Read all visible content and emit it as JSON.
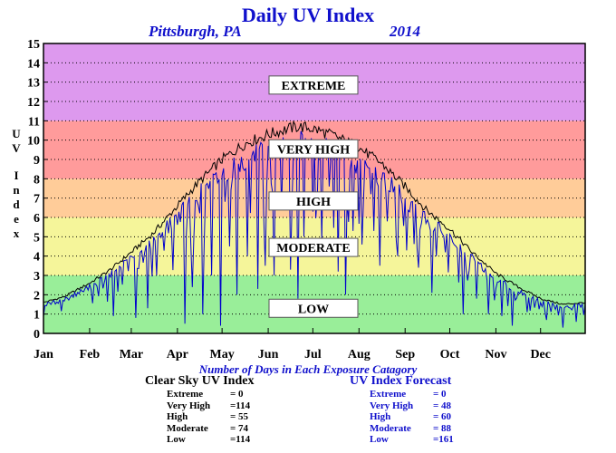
{
  "header": {
    "title": "Daily UV Index",
    "location": "Pittsburgh, PA",
    "year": "2014"
  },
  "colors": {
    "low": "#99ee99",
    "moderate": "#f5f59a",
    "high": "#ffcc99",
    "very_high": "#ff9b9b",
    "extreme": "#dd99ee",
    "clear_sky_line": "#000000",
    "forecast_line": "#0000cc",
    "title_blue": "#1010cc"
  },
  "chart_data": {
    "type": "line",
    "title": "Daily UV Index",
    "ylabel": "UV Index",
    "ylabel_letters": [
      "U",
      "V",
      "",
      "I",
      "n",
      "d",
      "e",
      "x"
    ],
    "ylim": [
      0,
      15
    ],
    "y_ticks": [
      0,
      1,
      2,
      3,
      4,
      5,
      6,
      7,
      8,
      9,
      10,
      11,
      12,
      13,
      14,
      15
    ],
    "x_range": [
      1,
      365
    ],
    "month_labels": [
      "Jan",
      "Feb",
      "Mar",
      "Apr",
      "May",
      "Jun",
      "Jul",
      "Aug",
      "Sep",
      "Oct",
      "Nov",
      "Dec"
    ],
    "month_days": [
      1,
      32,
      60,
      91,
      121,
      152,
      182,
      213,
      244,
      274,
      305,
      335
    ],
    "grid": true,
    "bands": [
      {
        "label": "LOW",
        "from": 0,
        "to": 3,
        "label_center": 1.3,
        "color_key": "low"
      },
      {
        "label": "MODERATE",
        "from": 3,
        "to": 6,
        "label_center": 4.45,
        "color_key": "moderate"
      },
      {
        "label": "HIGH",
        "from": 6,
        "to": 8,
        "label_center": 6.85,
        "color_key": "high"
      },
      {
        "label": "VERY HIGH",
        "from": 8,
        "to": 11,
        "label_center": 9.55,
        "color_key": "very_high"
      },
      {
        "label": "EXTREME",
        "from": 11,
        "to": 15,
        "label_center": 12.85,
        "color_key": "extreme"
      }
    ],
    "series": [
      {
        "key": "clear_sky",
        "color_key": "clear_sky_line",
        "anchors_day": [
          1,
          15,
          32,
          46,
          60,
          75,
          91,
          105,
          121,
          136,
          152,
          166,
          172,
          182,
          197,
          213,
          228,
          244,
          258,
          274,
          289,
          305,
          320,
          335,
          350,
          365
        ],
        "anchors_uv": [
          1.6,
          1.9,
          2.6,
          3.3,
          4.2,
          5.2,
          6.6,
          7.8,
          9.0,
          9.8,
          10.3,
          10.6,
          10.7,
          10.6,
          10.2,
          9.6,
          8.8,
          7.6,
          6.4,
          5.4,
          4.2,
          3.1,
          2.4,
          1.8,
          1.5,
          1.6
        ]
      },
      {
        "key": "forecast",
        "color_key": "forecast_line",
        "anchors_day": [
          1,
          15,
          32,
          46,
          60,
          75,
          91,
          105,
          121,
          136,
          152,
          166,
          172,
          182,
          197,
          213,
          228,
          244,
          258,
          274,
          289,
          305,
          320,
          335,
          350,
          365
        ],
        "anchors_uv": [
          1.6,
          1.9,
          2.6,
          3.3,
          4.2,
          5.2,
          6.6,
          7.8,
          9.0,
          9.8,
          10.3,
          10.6,
          10.7,
          10.6,
          10.2,
          9.6,
          8.8,
          7.6,
          6.4,
          5.4,
          4.2,
          3.1,
          2.4,
          1.8,
          1.5,
          1.6
        ],
        "dips": [
          {
            "day": 48,
            "uv": 0.9
          },
          {
            "day": 63,
            "uv": 0.8
          },
          {
            "day": 71,
            "uv": 1.3
          },
          {
            "day": 96,
            "uv": 0.5
          },
          {
            "day": 101,
            "uv": 2.4
          },
          {
            "day": 108,
            "uv": 1.0
          },
          {
            "day": 114,
            "uv": 3.0
          },
          {
            "day": 120,
            "uv": 0.4
          },
          {
            "day": 126,
            "uv": 4.5
          },
          {
            "day": 131,
            "uv": 2.0
          },
          {
            "day": 138,
            "uv": 4.0
          },
          {
            "day": 145,
            "uv": 2.3
          },
          {
            "day": 150,
            "uv": 3.5
          },
          {
            "day": 156,
            "uv": 3.0
          },
          {
            "day": 161,
            "uv": 6.4
          },
          {
            "day": 167,
            "uv": 3.3
          },
          {
            "day": 172,
            "uv": 1.8
          },
          {
            "day": 176,
            "uv": 5.0
          },
          {
            "day": 182,
            "uv": 6.3
          },
          {
            "day": 188,
            "uv": 4.8
          },
          {
            "day": 193,
            "uv": 7.6
          },
          {
            "day": 199,
            "uv": 3.2
          },
          {
            "day": 204,
            "uv": 2.0
          },
          {
            "day": 209,
            "uv": 5.3
          },
          {
            "day": 215,
            "uv": 4.6
          },
          {
            "day": 221,
            "uv": 7.2
          },
          {
            "day": 227,
            "uv": 3.5
          },
          {
            "day": 232,
            "uv": 5.8
          },
          {
            "day": 239,
            "uv": 4.0
          },
          {
            "day": 245,
            "uv": 4.3
          },
          {
            "day": 253,
            "uv": 3.4
          },
          {
            "day": 262,
            "uv": 2.1
          },
          {
            "day": 271,
            "uv": 4.2
          },
          {
            "day": 283,
            "uv": 1.0
          },
          {
            "day": 292,
            "uv": 1.8
          },
          {
            "day": 300,
            "uv": 1.0
          },
          {
            "day": 309,
            "uv": 0.9
          },
          {
            "day": 316,
            "uv": 0.4
          },
          {
            "day": 326,
            "uv": 1.1
          },
          {
            "day": 339,
            "uv": 0.7
          },
          {
            "day": 350,
            "uv": 0.3
          },
          {
            "day": 359,
            "uv": 0.6
          }
        ]
      }
    ],
    "x_axis_title": "Number of Days in Each Exposure Catagory",
    "exposure_tables": [
      {
        "title": "Clear Sky UV Index",
        "rows": [
          {
            "label": "Extreme",
            "value": "=   0"
          },
          {
            "label": "Very High",
            "value": "=114"
          },
          {
            "label": "High",
            "value": "=  55"
          },
          {
            "label": "Moderate",
            "value": "=  74"
          },
          {
            "label": "Low",
            "value": "=114"
          }
        ]
      },
      {
        "title": "UV Index Forecast",
        "rows": [
          {
            "label": "Extreme",
            "value": "=   0"
          },
          {
            "label": "Very High",
            "value": "=  48"
          },
          {
            "label": "High",
            "value": "=  60"
          },
          {
            "label": "Moderate",
            "value": "=  88"
          },
          {
            "label": "Low",
            "value": "=161"
          }
        ]
      }
    ]
  }
}
